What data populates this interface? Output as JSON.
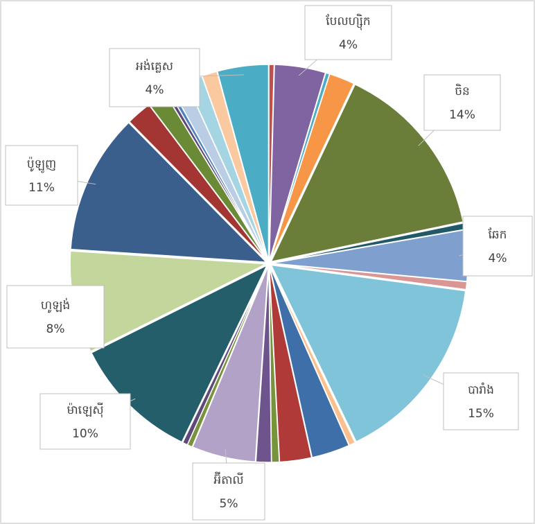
{
  "chart_data": {
    "type": "pie",
    "categories": [
      null,
      "បែលហ្ស៊ិក",
      null,
      null,
      "ចិន",
      null,
      "ឆែក",
      null,
      "បារាំង",
      null,
      null,
      null,
      null,
      null,
      "អ៊ីតាលី",
      null,
      null,
      "ម៉ាឡេស៊ី",
      "ហូឡង់",
      "ប៉ូឡូញ",
      null,
      null,
      null,
      null,
      null,
      null,
      null,
      "អង់គ្លេស"
    ],
    "values": [
      0.4,
      4,
      0.3,
      2,
      14,
      0.5,
      4,
      0.6,
      15,
      0.5,
      3,
      2.5,
      0.6,
      1.2,
      5,
      0.4,
      0.4,
      10,
      8,
      11,
      2,
      1.5,
      0.3,
      0.3,
      1.2,
      1.3,
      1.2,
      4
    ],
    "value_labels": [
      null,
      "4%",
      null,
      null,
      "14%",
      null,
      "4%",
      null,
      "15%",
      null,
      null,
      null,
      null,
      null,
      "5%",
      null,
      null,
      "10%",
      "8%",
      "11%",
      null,
      null,
      null,
      null,
      null,
      null,
      null,
      "4%"
    ],
    "colors": [
      "#c0504d",
      "#8064a2",
      "#4bacc6",
      "#f79646",
      "#6a7e3a",
      "#215968",
      "#7f9fcf",
      "#d99694",
      "#7fc4d8",
      "#fac08f",
      "#3f6fa8",
      "#b03a37",
      "#77933c",
      "#6e548d",
      "#b3a2c7",
      "#77933c",
      "#5f497a",
      "#255e6b",
      "#c3d69b",
      "#3a5f8c",
      "#a33633",
      "#6b8a35",
      "#5f497a",
      "#4f81bd",
      "#b9cde5",
      "#a5d5e2",
      "#fbc9a0",
      "#4bacc6"
    ]
  }
}
